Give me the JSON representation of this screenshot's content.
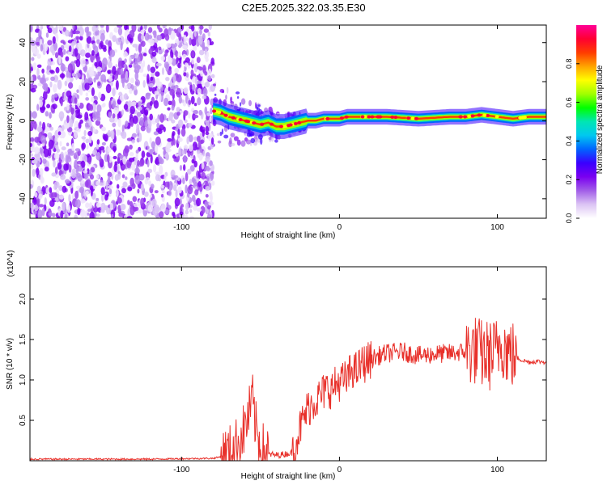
{
  "title": "C2E5.2025.322.03.35.E30",
  "chart_data": [
    {
      "type": "heatmap",
      "xlabel": "Height of straight line (km)",
      "ylabel": "Frequency (Hz)",
      "xlim": [
        -196,
        131
      ],
      "ylim": [
        -50,
        49
      ],
      "xticks": [
        -100,
        0,
        100
      ],
      "yticks": [
        -40,
        -20,
        0,
        20,
        40
      ],
      "noise_region_x": [
        -196,
        -80
      ],
      "signal_start_x": -80,
      "ridge": {
        "x": [
          -80,
          -75,
          -70,
          -65,
          -60,
          -55,
          -50,
          -45,
          -40,
          -35,
          -30,
          -25,
          -20,
          -15,
          -10,
          -5,
          0,
          5,
          10,
          20,
          30,
          50,
          70,
          80,
          90,
          100,
          110,
          120,
          131
        ],
        "freq": [
          5,
          4,
          2,
          1,
          0,
          -1,
          -2,
          -1,
          -3,
          -3,
          -2,
          -1,
          0,
          0,
          1,
          1,
          1,
          2,
          2,
          2,
          2,
          1,
          2,
          2,
          3,
          2,
          1,
          2,
          2
        ]
      },
      "colorbar": {
        "label": "Normalized spectral amplitude",
        "range": [
          0.0,
          1.0
        ],
        "ticks": [
          "0.0",
          "0.2",
          "0.4",
          "0.6",
          "0.8"
        ],
        "colors": [
          "#ffffff",
          "#dcc4f4",
          "#a25ee8",
          "#7a00f0",
          "#3a00ff",
          "#0064ff",
          "#00c8f0",
          "#00e6b4",
          "#00ff00",
          "#a0ff00",
          "#ffff00",
          "#ffa500",
          "#ff3c00",
          "#ff0032",
          "#ff0096"
        ]
      }
    },
    {
      "type": "line",
      "xlabel": "Height of straight line (km)",
      "ylabel": "SNR (10 * v/v)",
      "y_multiplier": "(x10^4)",
      "xlim": [
        -196,
        131
      ],
      "ylim": [
        0,
        2.4
      ],
      "xticks": [
        -100,
        0,
        100
      ],
      "yticks": [
        0.5,
        1.0,
        1.5,
        2.0
      ],
      "series": [
        {
          "color": "#e8302a",
          "x": [
            -196,
            -160,
            -120,
            -80,
            -75,
            -70,
            -65,
            -60,
            -57,
            -55,
            -53,
            -50,
            -48,
            -45,
            -40,
            -35,
            -30,
            -25,
            -20,
            -17,
            -15,
            -12,
            -10,
            -7,
            -5,
            -3,
            0,
            5,
            8,
            10,
            15,
            20,
            25,
            30,
            40,
            50,
            60,
            70,
            80,
            85,
            90,
            95,
            100,
            102,
            105,
            107,
            110,
            115,
            120,
            125,
            131
          ],
          "y": [
            0.02,
            0.02,
            0.02,
            0.03,
            0.05,
            0.1,
            0.2,
            0.4,
            0.6,
            0.75,
            0.4,
            0.2,
            0.12,
            0.08,
            0.07,
            0.08,
            0.1,
            0.4,
            0.65,
            0.72,
            0.75,
            0.8,
            0.85,
            0.9,
            0.88,
            0.92,
            0.98,
            1.0,
            1.15,
            1.1,
            1.2,
            1.25,
            1.3,
            1.33,
            1.35,
            1.3,
            1.32,
            1.33,
            1.35,
            1.38,
            1.32,
            1.3,
            1.35,
            1.5,
            1.4,
            1.35,
            1.3,
            1.25,
            1.22,
            1.23,
            1.22
          ]
        }
      ]
    }
  ]
}
